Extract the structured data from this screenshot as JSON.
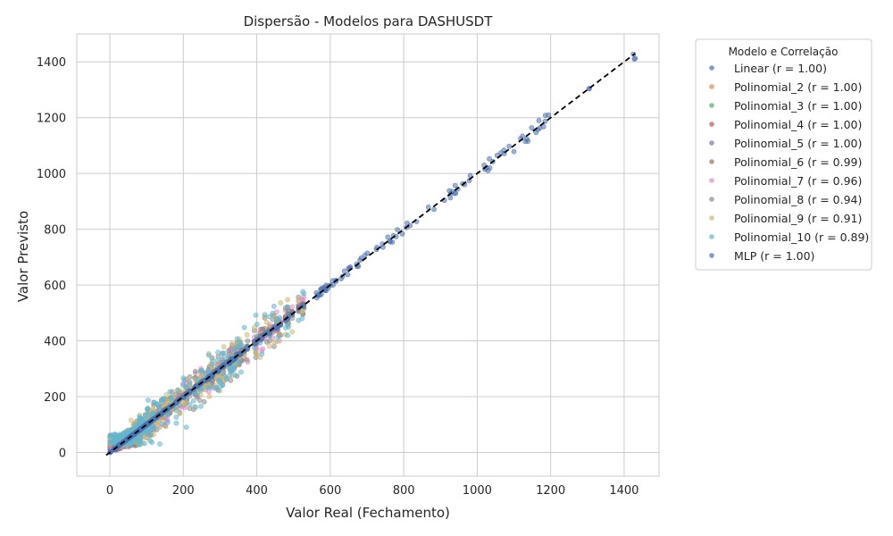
{
  "chart_data": {
    "type": "scatter",
    "title": "Dispersão - Modelos para DASHUSDT",
    "xlabel": "Valor Real (Fechamento)",
    "ylabel": "Valor Previsto",
    "xlim": [
      -90,
      1495
    ],
    "ylim": [
      -85,
      1500
    ],
    "xticks": [
      0,
      200,
      400,
      600,
      800,
      1000,
      1200,
      1400
    ],
    "yticks": [
      0,
      200,
      400,
      600,
      800,
      1000,
      1200,
      1400
    ],
    "grid": true,
    "legend": {
      "title": "Modelo e Correlação",
      "placement": "outside-right-top"
    },
    "reference_line": {
      "style": "dashed",
      "color": "#000000",
      "x": [
        -10,
        1430
      ],
      "y": [
        -10,
        1430
      ]
    },
    "series": [
      {
        "name": "Linear (r = 1.00)",
        "color": "#4c72b0",
        "r": 1.0,
        "noise": 0,
        "tail": 0,
        "floor": 0,
        "spread": 0.012
      },
      {
        "name": "Polinomial_2 (r = 1.00)",
        "color": "#dd8452",
        "r": 1.0,
        "noise": 0,
        "tail": 0,
        "floor": 0,
        "spread": 0.015
      },
      {
        "name": "Polinomial_3 (r = 1.00)",
        "color": "#55a868",
        "r": 1.0,
        "noise": 0,
        "tail": 0,
        "floor": 0,
        "spread": 0.015
      },
      {
        "name": "Polinomial_4 (r = 1.00)",
        "color": "#c44e52",
        "r": 1.0,
        "noise": 0,
        "tail": 0,
        "floor": 20,
        "spread": 0.02
      },
      {
        "name": "Polinomial_5 (r = 1.00)",
        "color": "#8172b3",
        "r": 1.0,
        "noise": 0,
        "tail": 0,
        "floor": 25,
        "spread": 0.02
      },
      {
        "name": "Polinomial_6 (r = 0.99)",
        "color": "#937860",
        "r": 0.99,
        "noise": 35,
        "tail": 0,
        "floor": 35,
        "spread": 0.03
      },
      {
        "name": "Polinomial_7 (r = 0.96)",
        "color": "#da8bc3",
        "r": 0.96,
        "noise": 55,
        "tail": 0,
        "floor": 45,
        "spread": 0.03
      },
      {
        "name": "Polinomial_8 (r = 0.94)",
        "color": "#8c8c8c",
        "r": 0.94,
        "noise": 65,
        "tail": 0,
        "floor": 55,
        "spread": 0.03
      },
      {
        "name": "Polinomial_9 (r = 0.91)",
        "color": "#ccb974",
        "r": 0.91,
        "noise": 75,
        "tail": 0,
        "floor": 62,
        "spread": 0.03
      },
      {
        "name": "Polinomial_10 (r = 0.89)",
        "color": "#64b5cd",
        "r": 0.89,
        "noise": 85,
        "tail": 0,
        "floor": 68,
        "spread": 0.03
      },
      {
        "name": "MLP (r = 1.00)",
        "color": "#4c72b0",
        "r": 1.0,
        "noise": 0,
        "tail": 1,
        "floor": 0,
        "spread": 0.02
      }
    ]
  }
}
